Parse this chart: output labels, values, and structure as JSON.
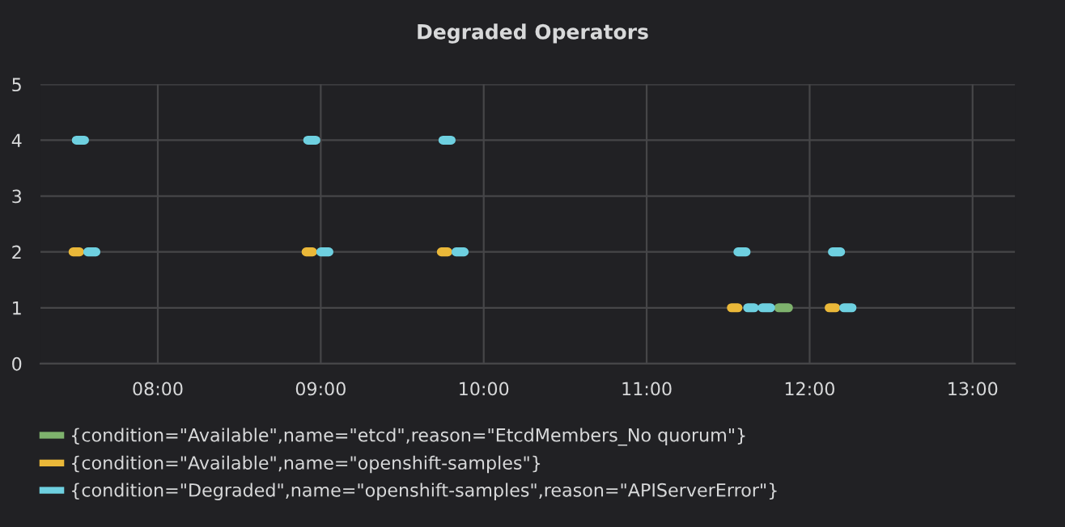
{
  "chart_data": {
    "type": "line",
    "title": "Degraded Operators",
    "xlim": [
      7.28,
      13.26
    ],
    "xticks": [
      {
        "value": 8,
        "label": "08:00"
      },
      {
        "value": 9,
        "label": "09:00"
      },
      {
        "value": 10,
        "label": "10:00"
      },
      {
        "value": 11,
        "label": "11:00"
      },
      {
        "value": 12,
        "label": "12:00"
      },
      {
        "value": 13,
        "label": "13:00"
      }
    ],
    "ylim": [
      0,
      5
    ],
    "yticks": [
      0,
      1,
      2,
      3,
      4,
      5
    ],
    "grid": true,
    "legend": "bottom left",
    "line_style": "solid",
    "series": [
      {
        "name": "{condition=\"Available\",name=\"etcd\",reason=\"EtcdMembers_No quorum\"}",
        "color": "#7eb26d",
        "x": [
          11.81,
          11.87
        ],
        "values": [
          1,
          1
        ]
      },
      {
        "name": "{condition=\"Available\",name=\"openshift-samples\"}",
        "color": "#eab839",
        "x": [
          7.48,
          7.52,
          8.2,
          8.91,
          8.95,
          9.3,
          9.74,
          9.78,
          10.6,
          11.52,
          11.56,
          11.9,
          12.12,
          12.16
        ],
        "values": [
          2,
          2,
          null,
          2,
          2,
          null,
          2,
          2,
          null,
          1,
          1,
          null,
          1,
          1
        ]
      },
      {
        "name": "{condition=\"Degraded\",name=\"openshift-samples\",reason=\"APIServerError\"}",
        "color": "#6ed0e0",
        "x": [
          7.5,
          7.55,
          7.56,
          7.57,
          7.62,
          8.2,
          8.92,
          8.97,
          8.98,
          9.0,
          9.05,
          9.4,
          9.75,
          9.8,
          9.81,
          9.83,
          9.88,
          10.6,
          11.56,
          11.61,
          11.615,
          11.62,
          11.66,
          11.685,
          11.71,
          11.76,
          11.95,
          12.14,
          12.19,
          12.2,
          12.21,
          12.26
        ],
        "values": [
          4,
          4,
          null,
          2,
          2,
          null,
          4,
          4,
          null,
          2,
          2,
          null,
          4,
          4,
          null,
          2,
          2,
          null,
          2,
          2,
          null,
          1,
          1,
          null,
          1,
          1,
          null,
          2,
          2,
          null,
          1,
          1
        ]
      }
    ]
  }
}
